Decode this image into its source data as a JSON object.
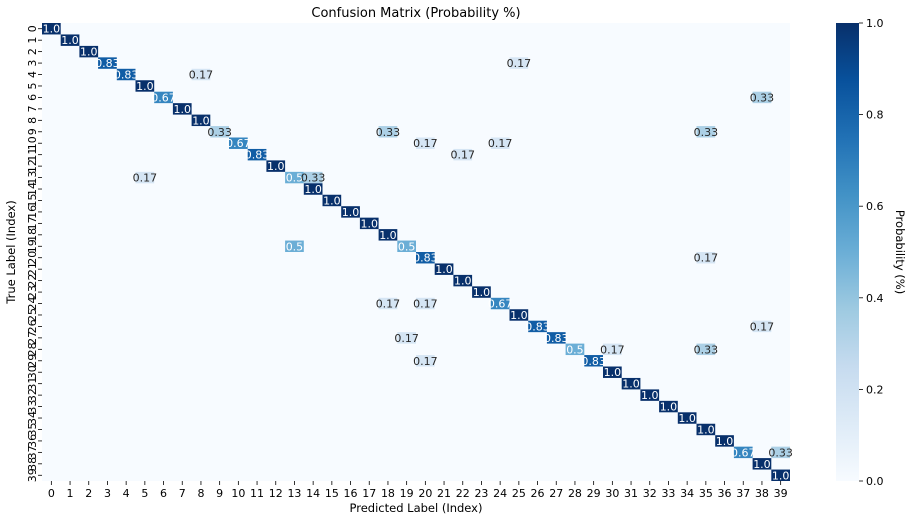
{
  "chart_data": {
    "type": "heatmap",
    "title": "Confusion Matrix (Probability %)",
    "xlabel": "Predicted Label (Index)",
    "ylabel": "True Label (Index)",
    "x_categories": [
      "0",
      "1",
      "2",
      "3",
      "4",
      "5",
      "6",
      "7",
      "8",
      "9",
      "10",
      "11",
      "12",
      "13",
      "14",
      "15",
      "16",
      "17",
      "18",
      "19",
      "20",
      "21",
      "22",
      "23",
      "24",
      "25",
      "26",
      "27",
      "28",
      "29",
      "30",
      "31",
      "32",
      "33",
      "34",
      "35",
      "36",
      "37",
      "38",
      "39"
    ],
    "y_categories": [
      "0",
      "1",
      "2",
      "3",
      "4",
      "5",
      "6",
      "7",
      "8",
      "9",
      "10",
      "11",
      "12",
      "13",
      "14",
      "15",
      "16",
      "17",
      "18",
      "19",
      "20",
      "21",
      "22",
      "23",
      "24",
      "25",
      "26",
      "27",
      "28",
      "29",
      "30",
      "31",
      "32",
      "33",
      "34",
      "35",
      "36",
      "37",
      "38",
      "39"
    ],
    "cells": [
      {
        "row": 0,
        "col": 0,
        "value": 1.0,
        "label": "1.0"
      },
      {
        "row": 1,
        "col": 1,
        "value": 1.0,
        "label": "1.0"
      },
      {
        "row": 2,
        "col": 2,
        "value": 1.0,
        "label": "1.0"
      },
      {
        "row": 3,
        "col": 3,
        "value": 0.83,
        "label": "0.83"
      },
      {
        "row": 3,
        "col": 25,
        "value": 0.17,
        "label": "0.17"
      },
      {
        "row": 4,
        "col": 4,
        "value": 0.83,
        "label": "0.83"
      },
      {
        "row": 4,
        "col": 8,
        "value": 0.17,
        "label": "0.17"
      },
      {
        "row": 5,
        "col": 5,
        "value": 1.0,
        "label": "1.0"
      },
      {
        "row": 6,
        "col": 6,
        "value": 0.67,
        "label": "0.67"
      },
      {
        "row": 6,
        "col": 38,
        "value": 0.33,
        "label": "0.33"
      },
      {
        "row": 7,
        "col": 7,
        "value": 1.0,
        "label": "1.0"
      },
      {
        "row": 8,
        "col": 8,
        "value": 1.0,
        "label": "1.0"
      },
      {
        "row": 9,
        "col": 9,
        "value": 0.33,
        "label": "0.33"
      },
      {
        "row": 9,
        "col": 18,
        "value": 0.33,
        "label": "0.33"
      },
      {
        "row": 9,
        "col": 35,
        "value": 0.33,
        "label": "0.33"
      },
      {
        "row": 10,
        "col": 10,
        "value": 0.67,
        "label": "0.67"
      },
      {
        "row": 10,
        "col": 20,
        "value": 0.17,
        "label": "0.17"
      },
      {
        "row": 10,
        "col": 24,
        "value": 0.17,
        "label": "0.17"
      },
      {
        "row": 11,
        "col": 11,
        "value": 0.83,
        "label": "0.83"
      },
      {
        "row": 11,
        "col": 22,
        "value": 0.17,
        "label": "0.17"
      },
      {
        "row": 12,
        "col": 12,
        "value": 1.0,
        "label": "1.0"
      },
      {
        "row": 13,
        "col": 5,
        "value": 0.17,
        "label": "0.17"
      },
      {
        "row": 13,
        "col": 13,
        "value": 0.5,
        "label": "0.5"
      },
      {
        "row": 13,
        "col": 14,
        "value": 0.33,
        "label": "0.33"
      },
      {
        "row": 14,
        "col": 14,
        "value": 1.0,
        "label": "1.0"
      },
      {
        "row": 15,
        "col": 15,
        "value": 1.0,
        "label": "1.0"
      },
      {
        "row": 16,
        "col": 16,
        "value": 1.0,
        "label": "1.0"
      },
      {
        "row": 17,
        "col": 17,
        "value": 1.0,
        "label": "1.0"
      },
      {
        "row": 18,
        "col": 18,
        "value": 1.0,
        "label": "1.0"
      },
      {
        "row": 19,
        "col": 13,
        "value": 0.5,
        "label": "0.5"
      },
      {
        "row": 19,
        "col": 19,
        "value": 0.5,
        "label": "0.5"
      },
      {
        "row": 20,
        "col": 20,
        "value": 0.83,
        "label": "0.83"
      },
      {
        "row": 20,
        "col": 35,
        "value": 0.17,
        "label": "0.17"
      },
      {
        "row": 21,
        "col": 21,
        "value": 1.0,
        "label": "1.0"
      },
      {
        "row": 22,
        "col": 22,
        "value": 1.0,
        "label": "1.0"
      },
      {
        "row": 23,
        "col": 23,
        "value": 1.0,
        "label": "1.0"
      },
      {
        "row": 24,
        "col": 18,
        "value": 0.17,
        "label": "0.17"
      },
      {
        "row": 24,
        "col": 20,
        "value": 0.17,
        "label": "0.17"
      },
      {
        "row": 24,
        "col": 24,
        "value": 0.67,
        "label": "0.67"
      },
      {
        "row": 25,
        "col": 25,
        "value": 1.0,
        "label": "1.0"
      },
      {
        "row": 26,
        "col": 26,
        "value": 0.83,
        "label": "0.83"
      },
      {
        "row": 26,
        "col": 38,
        "value": 0.17,
        "label": "0.17"
      },
      {
        "row": 27,
        "col": 19,
        "value": 0.17,
        "label": "0.17"
      },
      {
        "row": 27,
        "col": 27,
        "value": 0.83,
        "label": "0.83"
      },
      {
        "row": 28,
        "col": 28,
        "value": 0.5,
        "label": "0.5"
      },
      {
        "row": 28,
        "col": 30,
        "value": 0.17,
        "label": "0.17"
      },
      {
        "row": 28,
        "col": 35,
        "value": 0.33,
        "label": "0.33"
      },
      {
        "row": 29,
        "col": 20,
        "value": 0.17,
        "label": "0.17"
      },
      {
        "row": 29,
        "col": 29,
        "value": 0.83,
        "label": "0.83"
      },
      {
        "row": 30,
        "col": 30,
        "value": 1.0,
        "label": "1.0"
      },
      {
        "row": 31,
        "col": 31,
        "value": 1.0,
        "label": "1.0"
      },
      {
        "row": 32,
        "col": 32,
        "value": 1.0,
        "label": "1.0"
      },
      {
        "row": 33,
        "col": 33,
        "value": 1.0,
        "label": "1.0"
      },
      {
        "row": 34,
        "col": 34,
        "value": 1.0,
        "label": "1.0"
      },
      {
        "row": 35,
        "col": 35,
        "value": 1.0,
        "label": "1.0"
      },
      {
        "row": 36,
        "col": 36,
        "value": 1.0,
        "label": "1.0"
      },
      {
        "row": 37,
        "col": 37,
        "value": 0.67,
        "label": "0.67"
      },
      {
        "row": 37,
        "col": 39,
        "value": 0.33,
        "label": "0.33"
      },
      {
        "row": 38,
        "col": 38,
        "value": 1.0,
        "label": "1.0"
      },
      {
        "row": 39,
        "col": 39,
        "value": 1.0,
        "label": "1.0"
      }
    ],
    "colorbar": {
      "label": "Probability (%)",
      "range": [
        0.0,
        1.0
      ],
      "ticks": [
        "0.0",
        "0.2",
        "0.4",
        "0.6",
        "0.8",
        "1.0"
      ],
      "colormap": "Blues",
      "low_color": "#f7fbff",
      "high_color": "#08306b"
    }
  }
}
